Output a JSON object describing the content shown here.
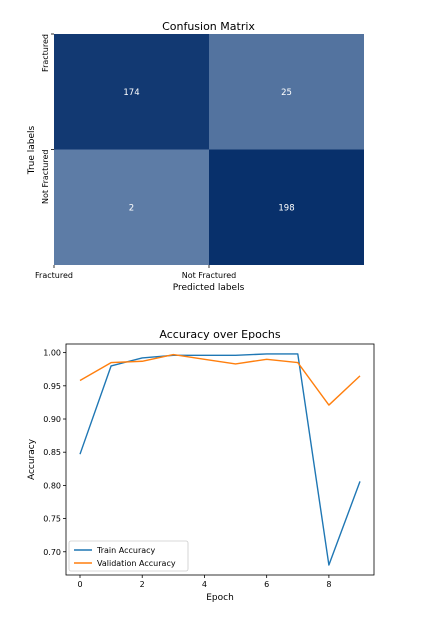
{
  "chart_data": [
    {
      "type": "heatmap",
      "title": "Confusion Matrix",
      "xlabel": "Predicted labels",
      "ylabel": "True labels",
      "x_tick_labels": [
        "Fractured",
        "Not Fractured"
      ],
      "y_tick_labels": [
        "Fractured",
        "Not Fractured"
      ],
      "matrix": [
        [
          174,
          25
        ],
        [
          2,
          198
        ]
      ],
      "colormap": "Blues",
      "vmin": 0,
      "vmax": 198,
      "cell_text_color": "#ffffff",
      "cell_labels": [
        "174",
        "25",
        "2",
        "198"
      ]
    },
    {
      "type": "line",
      "title": "Accuracy over Epochs",
      "xlabel": "Epoch",
      "ylabel": "Accuracy",
      "x": [
        0,
        1,
        2,
        3,
        4,
        5,
        6,
        7,
        8,
        9
      ],
      "xlim": [
        -0.45,
        9.45
      ],
      "ylim": [
        0.665,
        1.013
      ],
      "x_ticks": [
        0,
        2,
        4,
        6,
        8
      ],
      "x_tick_labels": [
        "0",
        "2",
        "4",
        "6",
        "8"
      ],
      "y_ticks": [
        0.7,
        0.75,
        0.8,
        0.85,
        0.9,
        0.95,
        1.0
      ],
      "y_tick_labels": [
        "0.70",
        "0.75",
        "0.80",
        "0.85",
        "0.90",
        "0.95",
        "1.00"
      ],
      "grid": false,
      "legend_position": "lower-left",
      "series": [
        {
          "name": "Train Accuracy",
          "color": "#1f77b4",
          "values": [
            0.847,
            0.98,
            0.992,
            0.996,
            0.996,
            0.996,
            0.998,
            0.998,
            0.68,
            0.806
          ]
        },
        {
          "name": "Validation Accuracy",
          "color": "#ff7f0e",
          "values": [
            0.958,
            0.985,
            0.987,
            0.997,
            0.99,
            0.983,
            0.99,
            0.985,
            0.921,
            0.965
          ]
        }
      ]
    }
  ]
}
